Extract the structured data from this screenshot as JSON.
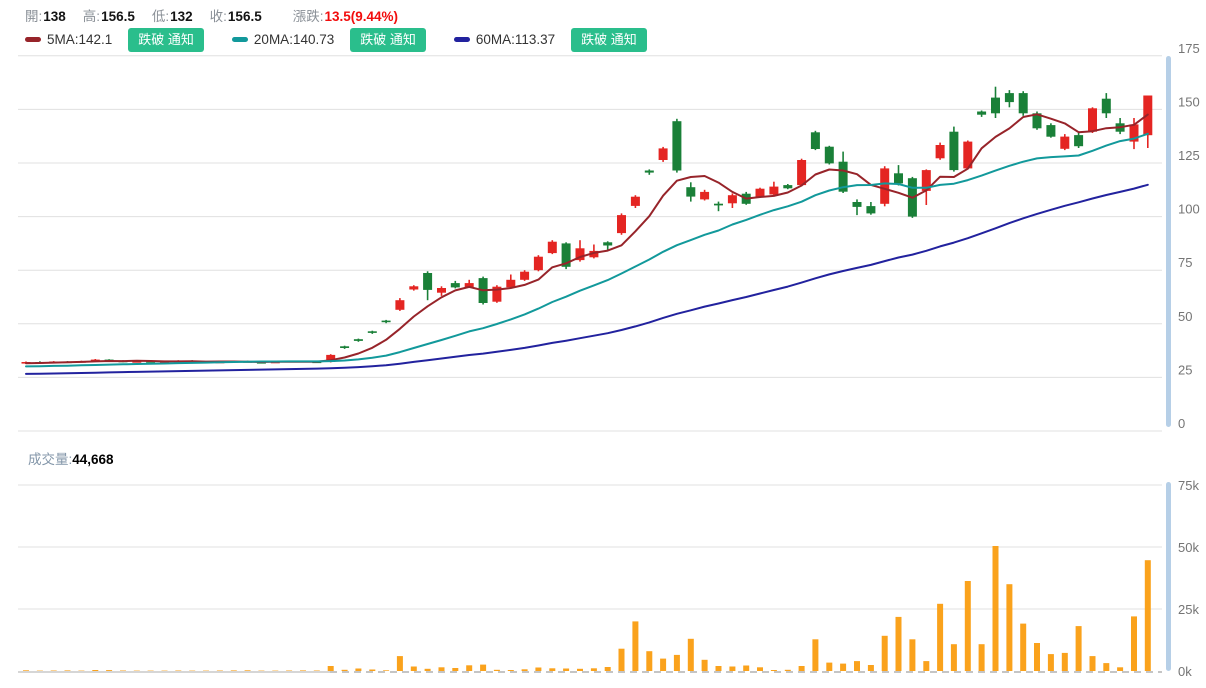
{
  "header": {
    "open_label": "開",
    "open": "138",
    "high_label": "高",
    "high": "156.5",
    "low_label": "低",
    "low": "132",
    "close_label": "收",
    "close": "156.5",
    "change_label": "漲跌",
    "change": "13.5(9.44%)"
  },
  "ma_legend": [
    {
      "label": "5MA:142.1",
      "button": "跌破 通知"
    },
    {
      "label": "20MA:140.73",
      "button": "跌破 通知"
    },
    {
      "label": "60MA:113.37",
      "button": "跌破 通知"
    }
  ],
  "volume_header": {
    "label": "成交量",
    "separator": ":",
    "value": "44,668"
  },
  "chart_data": {
    "type": "candlestick",
    "title": "",
    "legend_position": "top-left",
    "grid": true,
    "price_axis": {
      "side": "right",
      "range": [
        0,
        175
      ],
      "ticks": [
        0,
        25,
        50,
        75,
        100,
        125,
        150,
        175
      ]
    },
    "volume_axis": {
      "side": "right",
      "range": [
        0,
        75000
      ],
      "ticks": [
        {
          "v": 0,
          "label": "0k"
        },
        {
          "v": 25000,
          "label": "25k"
        },
        {
          "v": 50000,
          "label": "50k"
        },
        {
          "v": 75000,
          "label": "75k"
        }
      ]
    },
    "up_color": "#e42522",
    "down_color": "#1a8038",
    "volume_color": "#faa21c",
    "gridline_color": "#e0e0e0",
    "axis_label_color": "#757575",
    "moving_averages": [
      {
        "name": "5MA",
        "value": 142.1,
        "color": "#97242a"
      },
      {
        "name": "20MA",
        "value": 140.73,
        "color": "#12999b"
      },
      {
        "name": "60MA",
        "value": 113.37,
        "color": "#22229e"
      }
    ],
    "candles": [
      [
        31.8,
        32.4,
        31.5,
        32.2
      ],
      [
        32.2,
        32.5,
        31.7,
        31.9
      ],
      [
        31.9,
        32.6,
        31.8,
        32.4
      ],
      [
        32.4,
        32.6,
        31.9,
        32.1
      ],
      [
        32.1,
        32.8,
        32.0,
        32.6
      ],
      [
        32.6,
        33.6,
        32.4,
        33.3
      ],
      [
        33.3,
        33.5,
        32.6,
        32.8
      ],
      [
        32.8,
        33.0,
        32.1,
        32.3
      ],
      [
        32.3,
        32.8,
        32.1,
        32.6
      ],
      [
        32.6,
        32.8,
        32.0,
        32.2
      ],
      [
        32.2,
        32.7,
        32.1,
        32.5
      ],
      [
        32.5,
        33.0,
        32.3,
        32.8
      ],
      [
        32.8,
        33.0,
        32.2,
        32.4
      ],
      [
        32.4,
        32.6,
        31.8,
        32.0
      ],
      [
        32.0,
        32.5,
        31.9,
        32.3
      ],
      [
        32.3,
        32.8,
        32.2,
        32.6
      ],
      [
        32.6,
        32.8,
        32.0,
        32.2
      ],
      [
        32.2,
        32.4,
        31.7,
        31.9
      ],
      [
        31.9,
        32.5,
        31.8,
        32.3
      ],
      [
        32.3,
        32.9,
        32.2,
        32.7
      ],
      [
        32.7,
        32.9,
        32.2,
        32.4
      ],
      [
        32.4,
        32.6,
        31.9,
        32.1
      ],
      [
        32.2,
        35.8,
        32.0,
        35.5
      ],
      [
        39.5,
        39.8,
        38.3,
        38.7
      ],
      [
        42.8,
        43.1,
        41.6,
        42.0
      ],
      [
        46.5,
        46.8,
        45.3,
        45.8
      ],
      [
        51.5,
        51.8,
        50.3,
        50.8
      ],
      [
        56.5,
        62.0,
        56.0,
        61.0
      ],
      [
        66.0,
        68.0,
        65.5,
        67.5
      ],
      [
        73.7,
        74.5,
        61.0,
        65.8
      ],
      [
        64.5,
        67.5,
        63.0,
        66.7
      ],
      [
        69.0,
        70.0,
        66.5,
        67.0
      ],
      [
        67.0,
        70.5,
        66.8,
        69.0
      ],
      [
        71.3,
        72.0,
        59.0,
        59.7
      ],
      [
        60.3,
        68.0,
        59.8,
        67.3
      ],
      [
        67.0,
        73.0,
        66.5,
        70.5
      ],
      [
        70.5,
        75.0,
        70.0,
        74.3
      ],
      [
        75.0,
        82.0,
        74.5,
        81.3
      ],
      [
        83.0,
        89.0,
        82.5,
        88.3
      ],
      [
        87.5,
        88.0,
        75.5,
        76.6
      ],
      [
        79.7,
        89.0,
        79.0,
        85.2
      ],
      [
        81.0,
        87.0,
        80.5,
        84.0
      ],
      [
        88.0,
        88.5,
        84.5,
        86.5
      ],
      [
        92.3,
        101.5,
        91.5,
        100.7
      ],
      [
        105.0,
        110.0,
        104.0,
        109.3
      ],
      [
        121.5,
        122.0,
        119.5,
        120.5
      ],
      [
        126.4,
        132.5,
        125.5,
        131.8
      ],
      [
        144.5,
        145.6,
        120.5,
        121.5
      ],
      [
        113.7,
        116.0,
        107.0,
        109.3
      ],
      [
        108.0,
        112.5,
        107.5,
        111.5
      ],
      [
        106.0,
        107.0,
        102.5,
        105.2
      ],
      [
        106.2,
        110.8,
        104.0,
        110.0
      ],
      [
        110.7,
        111.5,
        105.5,
        106.0
      ],
      [
        109.3,
        113.5,
        108.8,
        113.0
      ],
      [
        110.3,
        116.3,
        109.8,
        114.0
      ],
      [
        114.7,
        115.2,
        112.8,
        113.2
      ],
      [
        114.7,
        127.0,
        114.2,
        126.4
      ],
      [
        139.3,
        140.0,
        131.0,
        131.5
      ],
      [
        132.6,
        133.0,
        124.3,
        124.8
      ],
      [
        125.6,
        130.3,
        111.0,
        111.6
      ],
      [
        106.8,
        108.0,
        100.7,
        104.5
      ],
      [
        104.9,
        106.8,
        100.9,
        101.5
      ],
      [
        106.0,
        123.5,
        104.8,
        122.5
      ],
      [
        120.2,
        124.0,
        114.5,
        115.5
      ],
      [
        117.9,
        118.5,
        99.4,
        100.0
      ],
      [
        112.0,
        122.0,
        105.4,
        121.7
      ],
      [
        127.2,
        134.5,
        126.5,
        133.4
      ],
      [
        139.6,
        142.0,
        121.0,
        121.7
      ],
      [
        122.5,
        135.5,
        122.0,
        135.0
      ],
      [
        149.0,
        149.5,
        146.5,
        147.5
      ],
      [
        155.5,
        160.6,
        146.0,
        148.2
      ],
      [
        157.6,
        159.0,
        151.0,
        153.4
      ],
      [
        157.6,
        158.5,
        147.0,
        148.2
      ],
      [
        148.2,
        149.0,
        140.5,
        141.2
      ],
      [
        142.7,
        143.5,
        136.8,
        137.3
      ],
      [
        131.6,
        138.5,
        131.0,
        137.3
      ],
      [
        138.0,
        139.0,
        132.0,
        132.8
      ],
      [
        139.6,
        151.0,
        139.0,
        150.5
      ],
      [
        155.0,
        157.6,
        146.0,
        148.2
      ],
      [
        143.5,
        146.0,
        138.5,
        139.6
      ],
      [
        135.0,
        146.0,
        131.5,
        143.0
      ],
      [
        138.0,
        156.5,
        132.0,
        156.5
      ]
    ],
    "volumes": [
      300,
      150,
      200,
      250,
      180,
      400,
      350,
      200,
      150,
      120,
      180,
      220,
      160,
      140,
      200,
      250,
      300,
      180,
      150,
      220,
      260,
      200,
      2000,
      500,
      1000,
      600,
      300,
      6000,
      1800,
      900,
      1500,
      1200,
      2300,
      2600,
      500,
      400,
      700,
      1400,
      1100,
      1000,
      900,
      1100,
      1600,
      9000,
      20000,
      8000,
      5000,
      6500,
      13000,
      4500,
      2000,
      1800,
      2200,
      1500,
      400,
      500,
      2000,
      12800,
      3400,
      3000,
      4000,
      2400,
      14200,
      21800,
      12800,
      4000,
      27100,
      10800,
      36300,
      10800,
      50400,
      35000,
      19100,
      11300,
      6800,
      7300,
      18100,
      6000,
      3200,
      1500,
      22000,
      44668
    ],
    "latest_volume": 44668
  }
}
